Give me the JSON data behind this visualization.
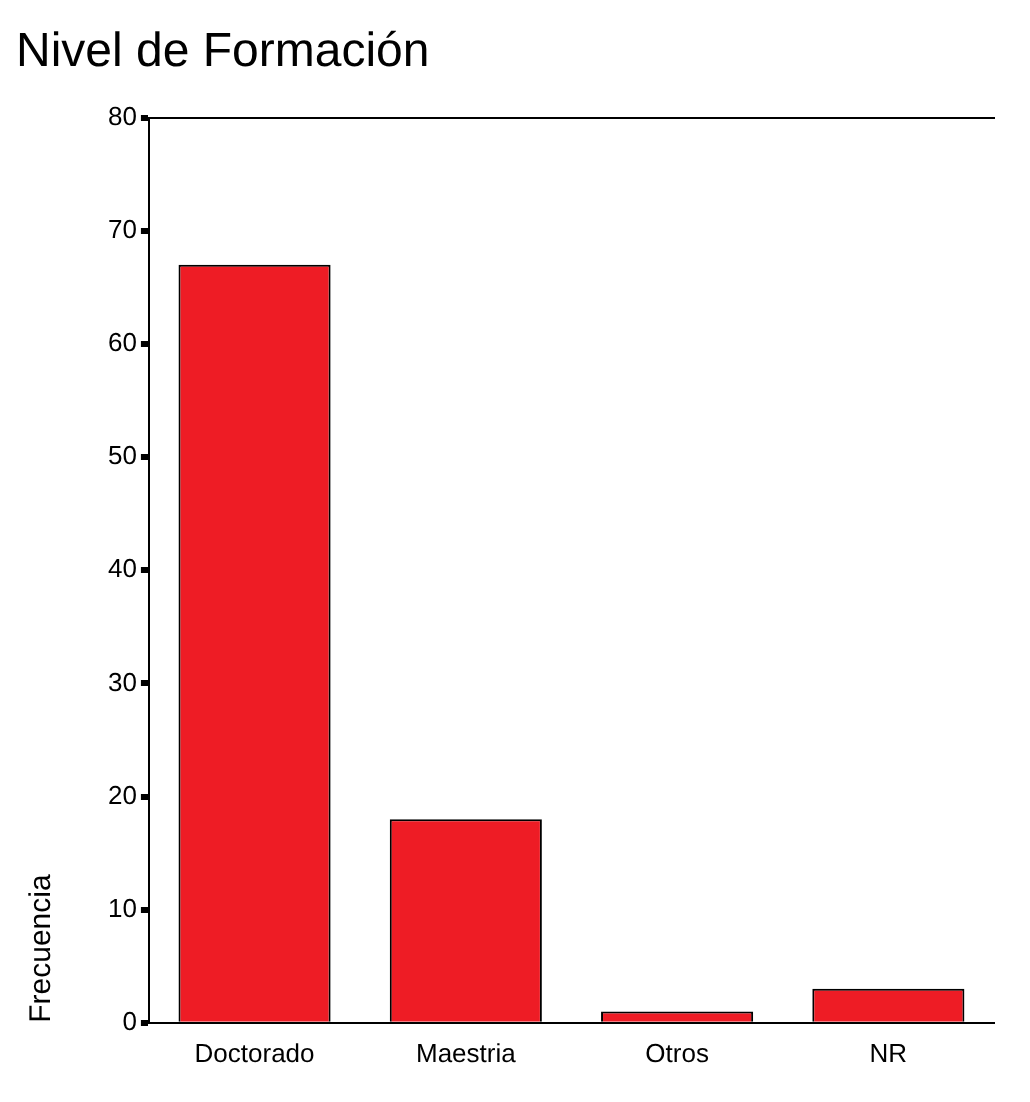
{
  "chart_data": {
    "type": "bar",
    "title": "Nivel de Formación",
    "ylabel": "Frecuencia",
    "categories": [
      "Doctorado",
      "Maestria",
      "Otros",
      "NR"
    ],
    "values": [
      67,
      18,
      1,
      3
    ],
    "color": "#ee1c25",
    "ylim": [
      0,
      80
    ],
    "yticks": [
      0,
      10,
      20,
      30,
      40,
      50,
      60,
      70,
      80
    ],
    "grid": false,
    "legend": false
  }
}
